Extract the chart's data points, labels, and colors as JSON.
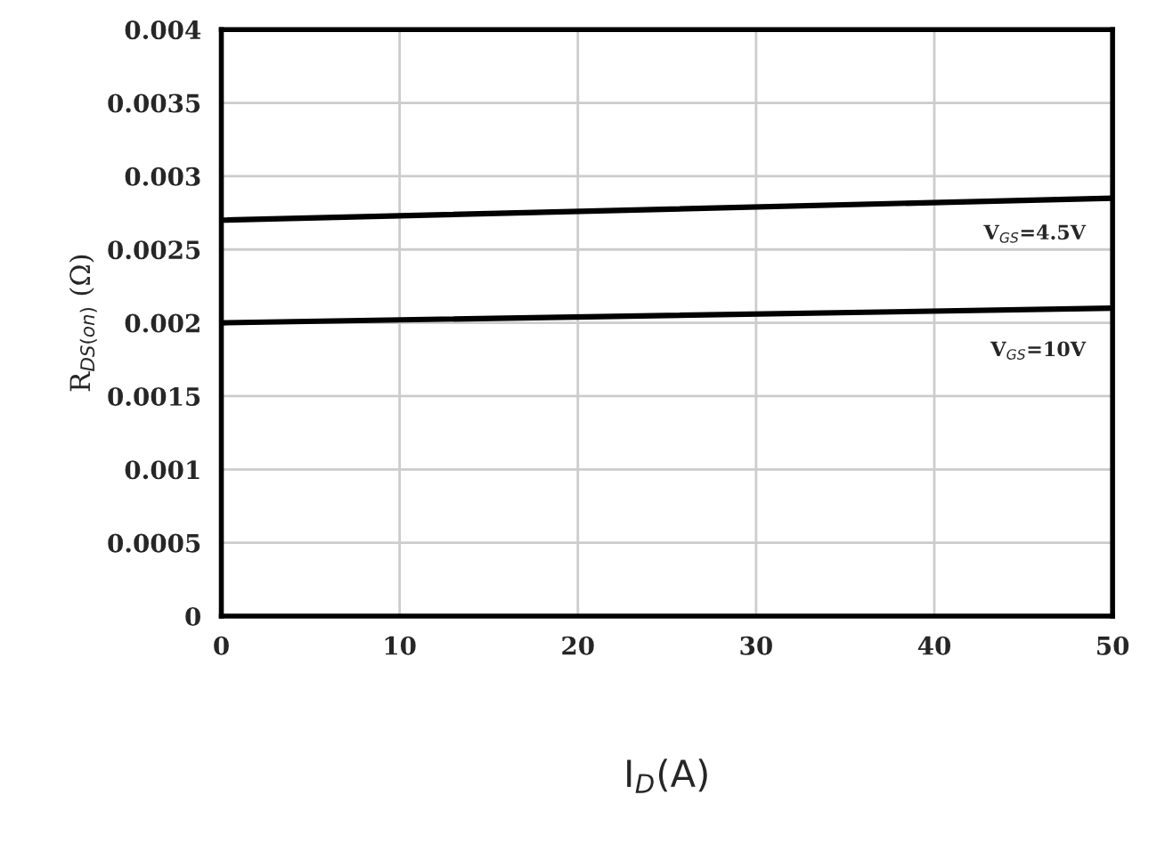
{
  "chart_data": {
    "type": "line",
    "xlabel": "I$_{D}$(A)",
    "ylabel": "R$_{DS(on)}$ (Ω)",
    "series": [
      {
        "name": "V$_{GS}$=4.5V",
        "color": "#000000",
        "values": [
          0.0027,
          0.00285
        ]
      },
      {
        "name": "V$_{GS}$=10V",
        "color": "#000000",
        "values": [
          0.002,
          0.0021
        ]
      }
    ],
    "x": [
      0,
      50
    ],
    "xlim": [
      0,
      50
    ],
    "ylim": [
      0,
      0.004
    ],
    "xticks": [
      0,
      10,
      20,
      30,
      40,
      50
    ],
    "yticks": [
      0,
      0.0005,
      0.001,
      0.0015,
      0.002,
      0.0025,
      0.003,
      0.0035,
      0.004
    ],
    "grid": true,
    "marker": "none",
    "line_style": "solid",
    "legend": false
  }
}
